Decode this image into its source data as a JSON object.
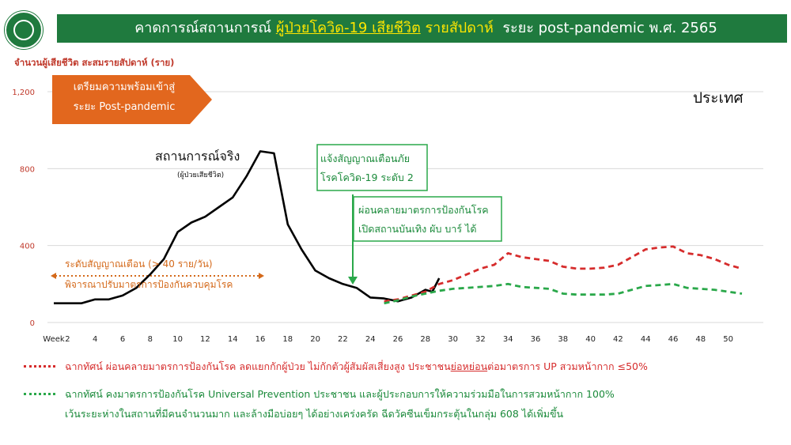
{
  "header": {
    "title_part1": "คาดการณ์สถานการณ์",
    "title_part2": "ผู้ป่วยโควิด-19 เสียชีวิต",
    "title_part3": "รายสัปดาห์",
    "title_part4": "ระยะ post-pandemic พ.ศ. 2565"
  },
  "colors": {
    "brand_green": "#1f7a3e",
    "actual": "#000000",
    "scenario_red": "#d62c2c",
    "scenario_green": "#2aa84a",
    "arrow_orange": "#e2671e",
    "annot_orange": "#d4691a"
  },
  "chart_data": {
    "type": "line",
    "ylabel": "จำนวนผู้เสียชีวิต สะสมรายสัปดาห์ (ราย)",
    "xlabel": "",
    "ylim": [
      0,
      1200
    ],
    "y_ticks": [
      "0",
      "400",
      "800",
      "1,200"
    ],
    "x_first_label": "Week",
    "x_ticks": [
      2,
      4,
      6,
      8,
      10,
      12,
      14,
      16,
      18,
      20,
      22,
      24,
      26,
      28,
      30,
      32,
      34,
      36,
      38,
      40,
      42,
      44,
      46,
      48,
      50
    ],
    "grid": "horizontal",
    "region_label": "ประเทศ",
    "series": [
      {
        "name": "สถานการณ์จริง",
        "x": [
          1,
          3,
          4,
          5,
          6,
          7,
          8,
          9,
          10,
          11,
          12,
          13,
          14,
          15,
          16,
          17,
          18,
          19,
          20,
          21,
          22,
          23,
          24,
          25,
          26,
          27,
          28,
          28.5,
          29
        ],
        "y": [
          100,
          100,
          120,
          120,
          140,
          180,
          250,
          330,
          470,
          520,
          550,
          600,
          650,
          760,
          890,
          880,
          510,
          380,
          270,
          230,
          200,
          180,
          130,
          125,
          110,
          130,
          170,
          160,
          230
        ]
      },
      {
        "name": "",
        "x": [
          25,
          26,
          27,
          28,
          29,
          30,
          31,
          32,
          33,
          34,
          35,
          36,
          37,
          38,
          39,
          40,
          41,
          42,
          43,
          44,
          45,
          46,
          47,
          48,
          49,
          50,
          51
        ],
        "y": [
          110,
          120,
          140,
          160,
          200,
          220,
          250,
          280,
          300,
          360,
          340,
          330,
          320,
          290,
          280,
          280,
          285,
          300,
          340,
          380,
          390,
          395,
          360,
          350,
          330,
          300,
          280
        ]
      },
      {
        "name": "",
        "x": [
          25,
          26,
          27,
          28,
          29,
          30,
          31,
          32,
          33,
          34,
          35,
          36,
          37,
          38,
          39,
          40,
          41,
          42,
          43,
          44,
          45,
          46,
          47,
          48,
          49,
          50,
          51
        ],
        "y": [
          100,
          115,
          135,
          150,
          165,
          175,
          180,
          185,
          190,
          200,
          185,
          180,
          175,
          150,
          145,
          145,
          145,
          150,
          170,
          190,
          195,
          200,
          180,
          175,
          170,
          160,
          150
        ]
      }
    ]
  },
  "annotations": {
    "prep_line1": "เตรียมความพร้อมเข้าสู่",
    "prep_line2": "ระยะ Post-pandemic",
    "country": "ประเทศ",
    "actual_label": "สถานการณ์จริง",
    "actual_sub": "(ผู้ป่วยเสียชีวิต)",
    "alert_line1": "แจ้งสัญญาณเตือนภัย",
    "alert_line2": "โรคโควิด-19 ระดับ 2",
    "relax_line1": "ผ่อนคลายมาตรการป้องกันโรค",
    "relax_line2": "เปิดสถานบันเทิง ผับ บาร์ ได้",
    "threshold_line1": "ระดับสัญญาณเตือน   (> 40 ราย/วัน)",
    "threshold_line2": "พิจารณาปรับมาตรการป้องกันควบคุมโรค"
  },
  "legend": {
    "red_prefix": "ฉากทัศน์ ผ่อนคลายมาตรการป้องกันโรค ลดแยกกักผู้ป่วย ไม่กักตัวผู้สัมผัสเสี่ยงสูง ประชาชน",
    "red_underlined": "ย่อหย่อน",
    "red_suffix": "ต่อมาตรการ UP สวมหน้ากาก ≤50%",
    "green_line1": "ฉากทัศน์ คงมาตรการป้องกันโรค Universal Prevention ประชาชน และผู้ประกอบการให้ความร่วมมือในการสวมหน้ากาก 100%",
    "green_line2": "เว้นระยะห่างในสถานที่มีคนจำนวนมาก และล้างมือบ่อยๆ ได้อย่างเคร่งครัด ฉีดวัคซีนเข็มกระตุ้นในกลุ่ม 608 ได้เพิ่มขึ้น"
  }
}
